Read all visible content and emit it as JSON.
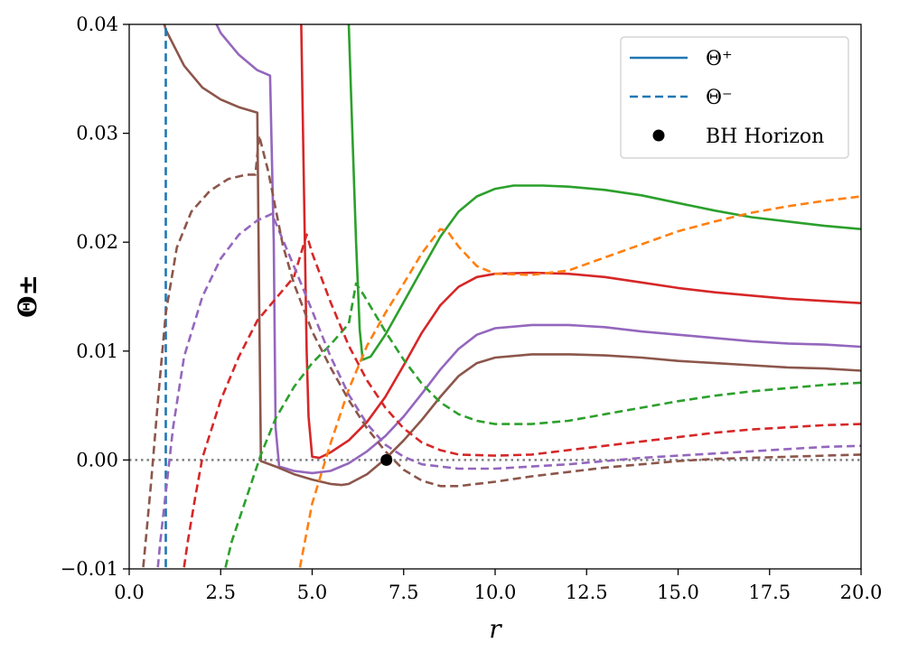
{
  "chart_data": {
    "type": "line",
    "title": "",
    "xlabel": "r",
    "ylabel": "Θ±",
    "xlim": [
      0,
      20
    ],
    "ylim": [
      -0.01,
      0.04
    ],
    "x_ticks": [
      0.0,
      2.5,
      5.0,
      7.5,
      10.0,
      12.5,
      15.0,
      17.5,
      20.0
    ],
    "x_tick_labels": [
      "0.0",
      "2.5",
      "5.0",
      "7.5",
      "10.0",
      "12.5",
      "15.0",
      "17.5",
      "20.0"
    ],
    "y_ticks": [
      -0.01,
      0.0,
      0.01,
      0.02,
      0.03,
      0.04
    ],
    "y_tick_labels": [
      "−0.01",
      "0.00",
      "0.01",
      "0.02",
      "0.03",
      "0.04"
    ],
    "grid": false,
    "legend": {
      "placement": "top-right",
      "entries": [
        {
          "label": "Θ⁺",
          "style": "solid",
          "color": "#1f77b4"
        },
        {
          "label": "Θ⁻",
          "style": "dashed",
          "color": "#1f77b4"
        },
        {
          "label": "BH Horizon",
          "style": "marker",
          "color": "#000000"
        }
      ]
    },
    "reference_line": {
      "y": 0.0,
      "style": "dotted",
      "color": "#808080"
    },
    "series": [
      {
        "kind": "Θ+",
        "style": "solid",
        "color": "#2ca02c",
        "points": [
          [
            5.97,
            0.045
          ],
          [
            6.0,
            0.04
          ],
          [
            6.1,
            0.03
          ],
          [
            6.2,
            0.02
          ],
          [
            6.3,
            0.012
          ],
          [
            6.38,
            0.0092
          ],
          [
            6.6,
            0.0095
          ],
          [
            7.0,
            0.0115
          ],
          [
            7.5,
            0.0145
          ],
          [
            8.0,
            0.0175
          ],
          [
            8.5,
            0.0205
          ],
          [
            9.0,
            0.0228
          ],
          [
            9.5,
            0.0242
          ],
          [
            10.0,
            0.0249
          ],
          [
            10.5,
            0.0252
          ],
          [
            11.3,
            0.0252
          ],
          [
            12.0,
            0.0251
          ],
          [
            13.0,
            0.0248
          ],
          [
            14.0,
            0.0243
          ],
          [
            15.0,
            0.0236
          ],
          [
            16.0,
            0.0229
          ],
          [
            17.0,
            0.0223
          ],
          [
            18.0,
            0.0219
          ],
          [
            19.0,
            0.0215
          ],
          [
            20.0,
            0.0212
          ]
        ]
      },
      {
        "kind": "Θ+",
        "style": "solid",
        "color": "#d62728",
        "points": [
          [
            4.65,
            0.045
          ],
          [
            4.7,
            0.04
          ],
          [
            4.75,
            0.03
          ],
          [
            4.8,
            0.02
          ],
          [
            4.85,
            0.01
          ],
          [
            4.9,
            0.004
          ],
          [
            5.0,
            0.0003
          ],
          [
            5.2,
            0.0002
          ],
          [
            5.5,
            0.0007
          ],
          [
            6.0,
            0.0018
          ],
          [
            6.5,
            0.0035
          ],
          [
            7.0,
            0.0058
          ],
          [
            7.5,
            0.0087
          ],
          [
            8.0,
            0.0117
          ],
          [
            8.5,
            0.0142
          ],
          [
            9.0,
            0.0159
          ],
          [
            9.5,
            0.0168
          ],
          [
            10.0,
            0.0171
          ],
          [
            11.0,
            0.0172
          ],
          [
            12.0,
            0.0171
          ],
          [
            13.0,
            0.0168
          ],
          [
            14.0,
            0.0163
          ],
          [
            15.0,
            0.0158
          ],
          [
            16.0,
            0.0154
          ],
          [
            17.0,
            0.0151
          ],
          [
            18.0,
            0.0148
          ],
          [
            19.0,
            0.0146
          ],
          [
            20.0,
            0.0144
          ]
        ]
      },
      {
        "kind": "Θ+",
        "style": "solid",
        "color": "#9467bd",
        "points": [
          [
            2.1,
            0.042
          ],
          [
            2.5,
            0.0392
          ],
          [
            3.0,
            0.0372
          ],
          [
            3.5,
            0.0358
          ],
          [
            3.85,
            0.0353
          ],
          [
            3.95,
            0.02
          ],
          [
            4.0,
            0.003
          ],
          [
            4.1,
            -0.0006
          ],
          [
            4.5,
            -0.001
          ],
          [
            5.0,
            -0.0012
          ],
          [
            5.5,
            -0.001
          ],
          [
            6.0,
            -0.0003
          ],
          [
            6.5,
            0.0008
          ],
          [
            7.0,
            0.0022
          ],
          [
            7.5,
            0.004
          ],
          [
            8.0,
            0.0061
          ],
          [
            8.5,
            0.0083
          ],
          [
            9.0,
            0.0102
          ],
          [
            9.5,
            0.0115
          ],
          [
            10.0,
            0.0121
          ],
          [
            11.0,
            0.0124
          ],
          [
            12.0,
            0.0124
          ],
          [
            13.0,
            0.0122
          ],
          [
            14.0,
            0.0118
          ],
          [
            15.0,
            0.0115
          ],
          [
            16.0,
            0.0112
          ],
          [
            17.0,
            0.0109
          ],
          [
            18.0,
            0.0107
          ],
          [
            19.0,
            0.0106
          ],
          [
            20.0,
            0.0104
          ]
        ]
      },
      {
        "kind": "Θ+",
        "style": "solid",
        "color": "#8c564b",
        "points": [
          [
            0.9,
            0.0408
          ],
          [
            1.0,
            0.0395
          ],
          [
            1.5,
            0.0362
          ],
          [
            2.0,
            0.0342
          ],
          [
            2.5,
            0.0331
          ],
          [
            3.0,
            0.0324
          ],
          [
            3.5,
            0.0319
          ],
          [
            3.55,
            0.015
          ],
          [
            3.6,
            -0.0001
          ],
          [
            4.0,
            -0.0006
          ],
          [
            4.5,
            -0.0013
          ],
          [
            5.0,
            -0.0018
          ],
          [
            5.5,
            -0.0022
          ],
          [
            5.8,
            -0.0023
          ],
          [
            6.0,
            -0.0022
          ],
          [
            6.5,
            -0.0013
          ],
          [
            7.0,
            0.0001
          ],
          [
            7.5,
            0.0018
          ],
          [
            8.0,
            0.0037
          ],
          [
            8.5,
            0.0058
          ],
          [
            9.0,
            0.0077
          ],
          [
            9.5,
            0.0089
          ],
          [
            10.0,
            0.0094
          ],
          [
            11.0,
            0.0097
          ],
          [
            12.0,
            0.0097
          ],
          [
            13.0,
            0.0096
          ],
          [
            14.0,
            0.0094
          ],
          [
            15.0,
            0.0091
          ],
          [
            16.0,
            0.0089
          ],
          [
            17.0,
            0.0087
          ],
          [
            18.0,
            0.0085
          ],
          [
            19.0,
            0.0084
          ],
          [
            20.0,
            0.0082
          ]
        ]
      },
      {
        "kind": "Θ-",
        "style": "dashed",
        "color": "#1f77b4",
        "points": [
          [
            1.0,
            -0.011
          ],
          [
            1.0,
            0.041
          ]
        ]
      },
      {
        "kind": "Θ-",
        "style": "dashed",
        "color": "#ff7f0e",
        "points": [
          [
            4.6,
            -0.011
          ],
          [
            4.8,
            -0.0075
          ],
          [
            5.0,
            -0.004
          ],
          [
            5.5,
            0.0015
          ],
          [
            6.0,
            0.0065
          ],
          [
            6.5,
            0.0105
          ],
          [
            7.0,
            0.0135
          ],
          [
            7.5,
            0.0162
          ],
          [
            8.0,
            0.019
          ],
          [
            8.5,
            0.0212
          ],
          [
            8.7,
            0.021
          ],
          [
            9.0,
            0.0196
          ],
          [
            9.5,
            0.0178
          ],
          [
            10.0,
            0.0171
          ],
          [
            11.0,
            0.017
          ],
          [
            12.0,
            0.0174
          ],
          [
            13.0,
            0.0186
          ],
          [
            14.0,
            0.0198
          ],
          [
            15.0,
            0.021
          ],
          [
            16.0,
            0.0219
          ],
          [
            17.0,
            0.0227
          ],
          [
            18.0,
            0.0233
          ],
          [
            19.0,
            0.0238
          ],
          [
            20.0,
            0.0242
          ]
        ]
      },
      {
        "kind": "Θ-",
        "style": "dashed",
        "color": "#2ca02c",
        "points": [
          [
            2.55,
            -0.011
          ],
          [
            2.8,
            -0.0075
          ],
          [
            3.2,
            -0.0035
          ],
          [
            3.6,
            0.0005
          ],
          [
            4.0,
            0.0038
          ],
          [
            4.5,
            0.0067
          ],
          [
            5.0,
            0.0089
          ],
          [
            5.5,
            0.0106
          ],
          [
            6.0,
            0.0125
          ],
          [
            6.2,
            0.0162
          ],
          [
            6.4,
            0.0152
          ],
          [
            7.0,
            0.0118
          ],
          [
            7.5,
            0.0092
          ],
          [
            8.0,
            0.007
          ],
          [
            8.5,
            0.0053
          ],
          [
            9.0,
            0.0042
          ],
          [
            9.5,
            0.0036
          ],
          [
            10.0,
            0.0033
          ],
          [
            11.0,
            0.0033
          ],
          [
            12.0,
            0.0036
          ],
          [
            13.0,
            0.0042
          ],
          [
            14.0,
            0.0048
          ],
          [
            15.0,
            0.0054
          ],
          [
            16.0,
            0.0059
          ],
          [
            17.0,
            0.0063
          ],
          [
            18.0,
            0.0066
          ],
          [
            19.0,
            0.0069
          ],
          [
            20.0,
            0.0071
          ]
        ]
      },
      {
        "kind": "Θ-",
        "style": "dashed",
        "color": "#d62728",
        "points": [
          [
            1.45,
            -0.011
          ],
          [
            1.6,
            -0.0075
          ],
          [
            1.8,
            -0.0035
          ],
          [
            2.0,
            0.0002
          ],
          [
            2.5,
            0.0055
          ],
          [
            3.0,
            0.0095
          ],
          [
            3.5,
            0.0128
          ],
          [
            4.0,
            0.0148
          ],
          [
            4.5,
            0.0168
          ],
          [
            4.85,
            0.0207
          ],
          [
            5.0,
            0.019
          ],
          [
            5.5,
            0.0145
          ],
          [
            6.0,
            0.0105
          ],
          [
            6.5,
            0.0073
          ],
          [
            7.0,
            0.0048
          ],
          [
            7.5,
            0.0029
          ],
          [
            8.0,
            0.0016
          ],
          [
            8.5,
            0.0009
          ],
          [
            9.0,
            0.0005
          ],
          [
            10.0,
            0.0004
          ],
          [
            11.0,
            0.0005
          ],
          [
            12.0,
            0.0009
          ],
          [
            13.0,
            0.0013
          ],
          [
            14.0,
            0.0017
          ],
          [
            15.0,
            0.0021
          ],
          [
            16.0,
            0.0025
          ],
          [
            17.0,
            0.0028
          ],
          [
            18.0,
            0.003
          ],
          [
            19.0,
            0.0032
          ],
          [
            20.0,
            0.0033
          ]
        ]
      },
      {
        "kind": "Θ-",
        "style": "dashed",
        "color": "#9467bd",
        "points": [
          [
            0.75,
            -0.011
          ],
          [
            0.85,
            -0.0075
          ],
          [
            1.0,
            -0.003
          ],
          [
            1.2,
            0.003
          ],
          [
            1.5,
            0.0095
          ],
          [
            2.0,
            0.015
          ],
          [
            2.5,
            0.0185
          ],
          [
            3.0,
            0.0207
          ],
          [
            3.5,
            0.022
          ],
          [
            3.9,
            0.0226
          ],
          [
            4.0,
            0.0218
          ],
          [
            4.5,
            0.0178
          ],
          [
            5.0,
            0.0137
          ],
          [
            5.5,
            0.0095
          ],
          [
            6.0,
            0.006
          ],
          [
            6.5,
            0.0033
          ],
          [
            7.0,
            0.0014
          ],
          [
            7.5,
            0.0003
          ],
          [
            8.0,
            -0.0004
          ],
          [
            9.0,
            -0.0008
          ],
          [
            10.0,
            -0.0008
          ],
          [
            11.0,
            -0.0006
          ],
          [
            12.0,
            -0.0004
          ],
          [
            13.0,
            -0.0001
          ],
          [
            14.0,
            0.0002
          ],
          [
            15.0,
            0.0004
          ],
          [
            16.0,
            0.0006
          ],
          [
            17.0,
            0.0008
          ],
          [
            18.0,
            0.001
          ],
          [
            19.0,
            0.0012
          ],
          [
            20.0,
            0.0013
          ]
        ]
      },
      {
        "kind": "Θ-",
        "style": "dashed",
        "color": "#8c564b",
        "points": [
          [
            0.35,
            -0.011
          ],
          [
            0.45,
            -0.0075
          ],
          [
            0.6,
            -0.002
          ],
          [
            0.8,
            0.006
          ],
          [
            1.0,
            0.0135
          ],
          [
            1.3,
            0.0195
          ],
          [
            1.7,
            0.0228
          ],
          [
            2.2,
            0.0247
          ],
          [
            2.7,
            0.0258
          ],
          [
            3.2,
            0.0262
          ],
          [
            3.45,
            0.0262
          ],
          [
            3.55,
            0.0298
          ],
          [
            3.8,
            0.0265
          ],
          [
            4.2,
            0.0197
          ],
          [
            4.5,
            0.0162
          ],
          [
            5.0,
            0.0118
          ],
          [
            5.5,
            0.0085
          ],
          [
            6.0,
            0.0055
          ],
          [
            6.5,
            0.0029
          ],
          [
            7.0,
            0.0008
          ],
          [
            7.5,
            -0.0009
          ],
          [
            8.0,
            -0.0019
          ],
          [
            8.5,
            -0.0024
          ],
          [
            9.0,
            -0.0024
          ],
          [
            10.0,
            -0.002
          ],
          [
            11.0,
            -0.0015
          ],
          [
            12.0,
            -0.0011
          ],
          [
            13.0,
            -0.0007
          ],
          [
            14.0,
            -0.0004
          ],
          [
            15.0,
            -0.0001
          ],
          [
            16.0,
            0.0001
          ],
          [
            17.0,
            0.0002
          ],
          [
            18.0,
            0.0003
          ],
          [
            19.0,
            0.0004
          ],
          [
            20.0,
            0.0005
          ]
        ]
      }
    ],
    "markers": [
      {
        "label": "BH Horizon",
        "x": 7.03,
        "y": 0.0,
        "color": "#000000"
      }
    ]
  }
}
